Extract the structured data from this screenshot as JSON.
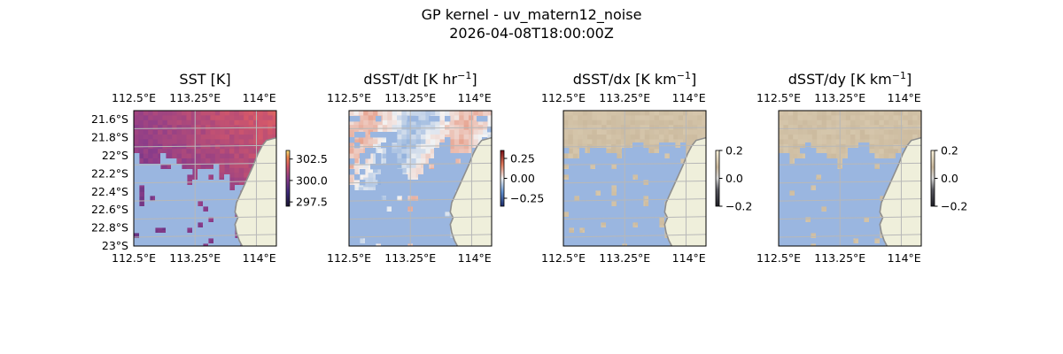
{
  "figure": {
    "title_line1": "GP kernel - uv_matern12_noise",
    "title_line2": "2026-04-08T18:00:00Z"
  },
  "colors": {
    "land": "#efefdb",
    "coast": "#8e8e8e",
    "ocean_mask": "#9ab6e0",
    "grid": "#b8b8b8",
    "sst_warm": "#e36b4e",
    "sst_mid": "#b44f78",
    "sst_cold": "#5b2f8a"
  },
  "chart_data": [
    {
      "type": "heatmap",
      "title": "SST [K]",
      "colormap": "thermal",
      "clim": [
        297.0,
        303.5
      ],
      "colorbar_ticks": [
        "302.5",
        "300.0",
        "297.5"
      ],
      "colorbar_tick_values": [
        302.5,
        300.0,
        297.5
      ],
      "xlim": [
        112.5,
        114.25
      ],
      "ylim": [
        -23.0,
        -21.5
      ],
      "xticks_top": [
        "112.5°E",
        "113.25°E",
        "114°E"
      ],
      "xticks_bottom": [
        "112.5°E",
        "113.25°E",
        "114°E"
      ],
      "yticks": [
        "21.6°S",
        "21.8°S",
        "22°S",
        "22.2°S",
        "22.4°S",
        "22.6°S",
        "22.8°S",
        "23°S"
      ],
      "ytick_values": [
        -21.6,
        -21.8,
        -22.0,
        -22.2,
        -22.4,
        -22.6,
        -22.8,
        -23.0
      ],
      "grid": true
    },
    {
      "type": "heatmap",
      "title": "dSST/dt [K hr",
      "title_sup": "−1",
      "title_end": "]",
      "colormap": "diverging",
      "clim": [
        -0.35,
        0.35
      ],
      "colorbar_ticks": [
        "0.25",
        "0.00",
        "−0.25"
      ],
      "colorbar_tick_values": [
        0.25,
        0.0,
        -0.25
      ],
      "xlim": [
        112.5,
        114.25
      ],
      "ylim": [
        -23.0,
        -21.5
      ],
      "xticks_top": [
        "112.5°E",
        "113.25°E",
        "114°E"
      ],
      "xticks_bottom": [
        "112.5°E",
        "113.25°E",
        "114°E"
      ],
      "grid": true
    },
    {
      "type": "heatmap",
      "title": "dSST/dx [K km",
      "title_sup": "−1",
      "title_end": "]",
      "colormap": "grayscale",
      "clim": [
        -0.2,
        0.2
      ],
      "colorbar_ticks": [
        "0.2",
        "0.0",
        "−0.2"
      ],
      "colorbar_tick_values": [
        0.2,
        0.0,
        -0.2
      ],
      "xlim": [
        112.5,
        114.25
      ],
      "ylim": [
        -23.0,
        -21.5
      ],
      "xticks_top": [
        "112.5°E",
        "113.25°E",
        "114°E"
      ],
      "xticks_bottom": [
        "112.5°E",
        "113.25°E",
        "114°E"
      ],
      "grid": true
    },
    {
      "type": "heatmap",
      "title": "dSST/dy [K km",
      "title_sup": "−1",
      "title_end": "]",
      "colormap": "grayscale",
      "clim": [
        -0.2,
        0.2
      ],
      "colorbar_ticks": [
        "0.2",
        "0.0",
        "−0.2"
      ],
      "colorbar_tick_values": [
        0.2,
        0.0,
        -0.2
      ],
      "xlim": [
        112.5,
        114.25
      ],
      "ylim": [
        -23.0,
        -21.5
      ],
      "xticks_top": [
        "112.5°E",
        "113.25°E",
        "114°E"
      ],
      "xticks_bottom": [
        "112.5°E",
        "113.25°E",
        "114°E"
      ],
      "grid": true
    }
  ]
}
